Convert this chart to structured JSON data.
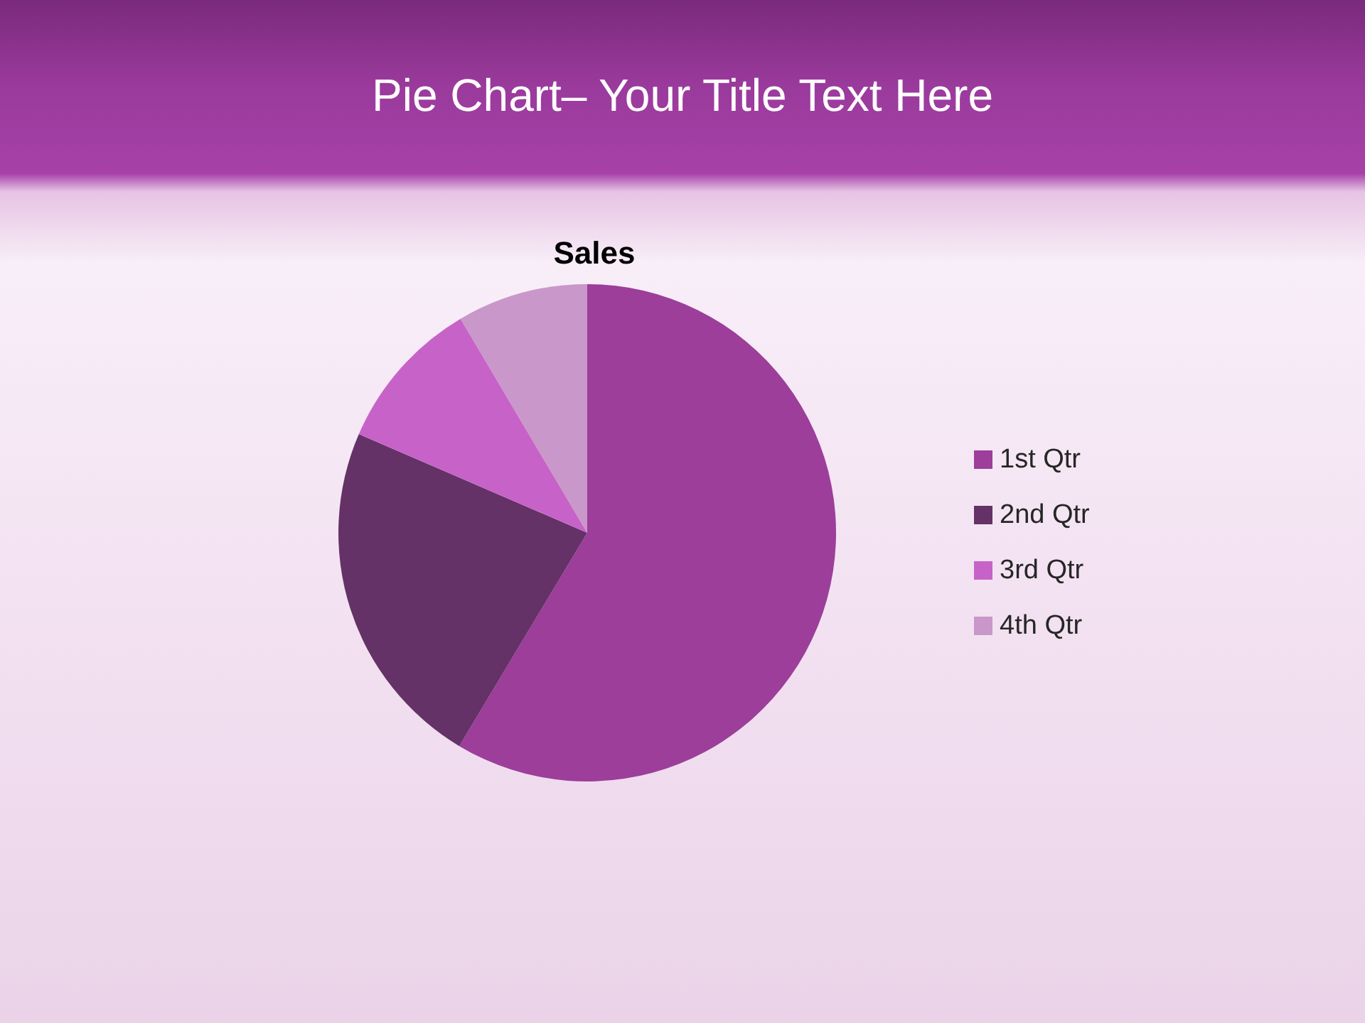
{
  "chart_data": {
    "type": "pie",
    "title": "Pie Chart– Your Title Text Here",
    "subtitle": "Sales",
    "categories": [
      "1st Qtr",
      "2nd Qtr",
      "3rd Qtr",
      "4th Qtr"
    ],
    "values": [
      58.6,
      22.9,
      10,
      8.5
    ],
    "colors": [
      "#9c3e9a",
      "#643266",
      "#c763c8",
      "#c997c9"
    ],
    "legend": "right"
  }
}
